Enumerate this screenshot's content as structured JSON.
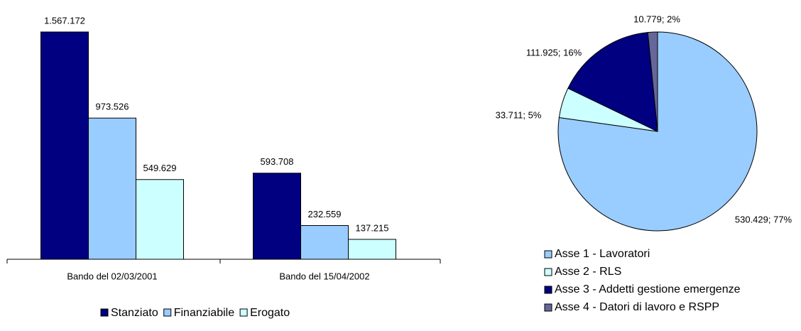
{
  "chart_data": [
    {
      "type": "bar",
      "categories": [
        "Bando del 02/03/2001",
        "Bando del 15/04/2002"
      ],
      "series": [
        {
          "name": "Stanziato",
          "color": "#000080",
          "values": [
            1567172,
            593708
          ],
          "value_labels": [
            "1.567.172",
            "593.708"
          ]
        },
        {
          "name": "Finanziabile",
          "color": "#99ccff",
          "values": [
            973526,
            232559
          ],
          "value_labels": [
            "973.526",
            "232.559"
          ]
        },
        {
          "name": "Erogato",
          "color": "#ccffff",
          "values": [
            549629,
            137215
          ],
          "value_labels": [
            "549.629",
            "137.215"
          ]
        }
      ]
    },
    {
      "type": "pie",
      "categories": [
        "Asse 1 - Lavoratori",
        "Asse 2 - RLS",
        "Asse 3 - Addetti gestione emergenze",
        "Asse 4 - Datori di lavoro e RSPP"
      ],
      "values": [
        530429,
        33711,
        111925,
        10779
      ],
      "value_labels": [
        "530.429; 77%",
        "33.711; 5%",
        "111.925; 16%",
        "10.779; 2%"
      ],
      "colors": [
        "#99ccff",
        "#ccffff",
        "#000080",
        "#666699"
      ]
    }
  ]
}
